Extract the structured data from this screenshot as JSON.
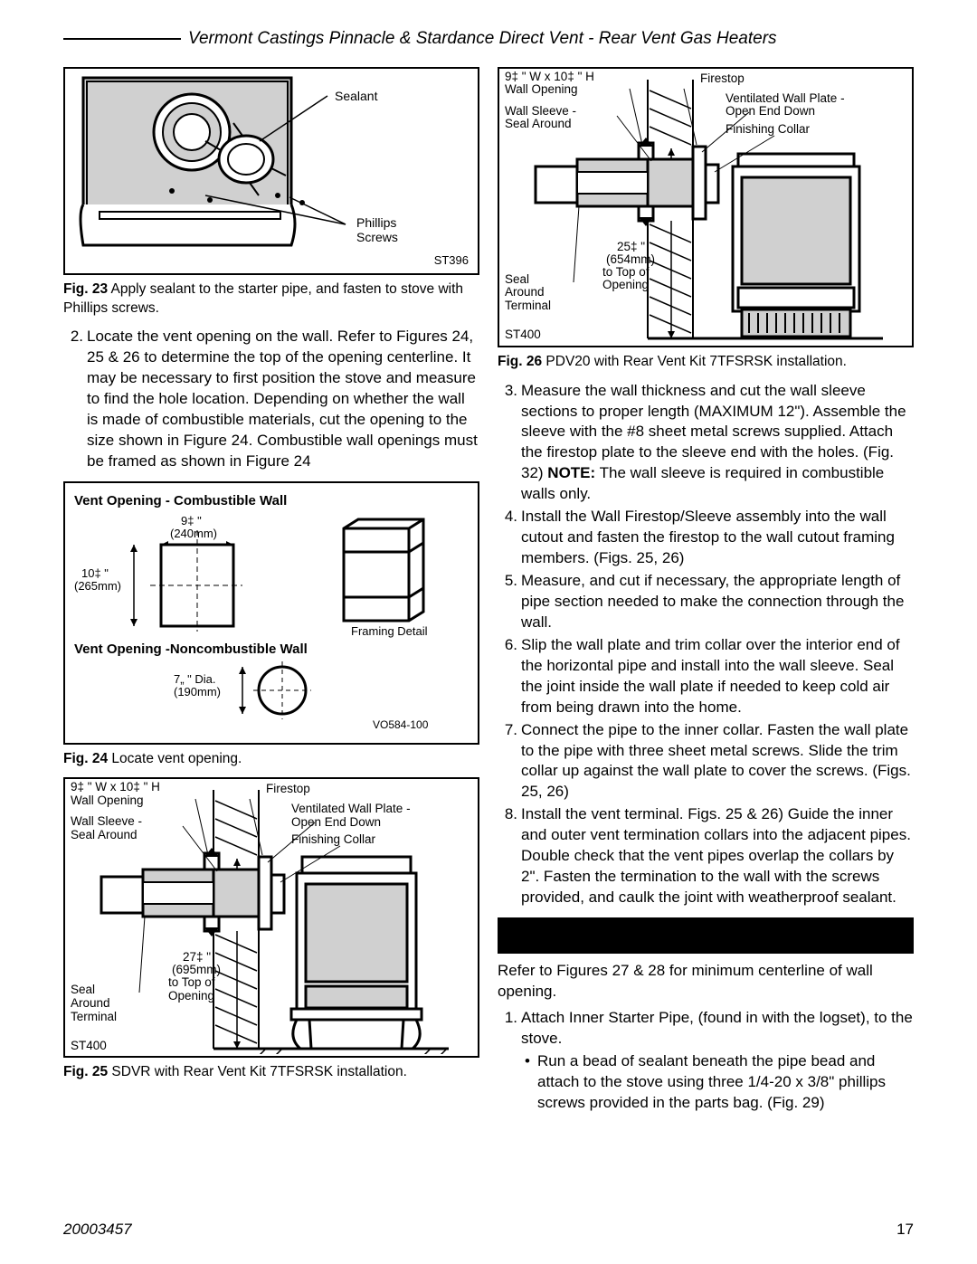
{
  "header": {
    "title": "Vermont Castings Pinnacle & Stardance Direct Vent - Rear Vent Gas Heaters"
  },
  "fig23": {
    "code": "ST396",
    "label_sealant": "Sealant",
    "label_screws": "Phillips\nScrews",
    "caption_bold": "Fig. 23",
    "caption_rest": "  Apply sealant to the starter pipe, and fasten to stove with Phillips screws."
  },
  "leftStep2": {
    "num": "2.",
    "text": "Locate the vent opening on the wall. Refer to Figures 24, 25 & 26 to determine the top of the opening centerline. It may be necessary to first position the stove and measure to find the hole location. Depending on whether the wall is made of combustible materials, cut the opening to the size shown in Figure 24. Combustible wall openings must be framed as shown in Figure 24"
  },
  "fig24": {
    "head1": "Vent Opening - Combustible Wall",
    "w_lbl": "9‡ \"",
    "w_mm": "(240mm)",
    "h_lbl": "10‡ \"",
    "h_mm": "(265mm)",
    "framing": "Framing Detail",
    "head2": "Vent Opening -Noncombustible Wall",
    "dia_lbl": "7„  \" Dia.",
    "dia_mm": "(190mm)",
    "code": "VO584-100",
    "caption_bold": "Fig. 24",
    "caption_rest": "  Locate vent opening."
  },
  "stove_labels": {
    "wo": "9‡ \" W x 10‡ \" H\nWall Opening",
    "ws": "Wall Sleeve -\nSeal Around",
    "seal": "Seal\nAround\nTerminal",
    "fs": "Firestop",
    "vwp": "Ventilated Wall Plate -\nOpen End Down",
    "fc": "Finishing Collar",
    "code": "ST400"
  },
  "fig25": {
    "dim": "27‡ \"",
    "dim_mm": "(695mm)",
    "dim_to": "to Top of\nOpening",
    "caption_bold": "Fig. 25",
    "caption_rest": " SDVR with Rear Vent Kit 7TFSRSK installation."
  },
  "fig26": {
    "dim": "25‡ \"",
    "dim_mm": "(654mm)",
    "dim_to": "to Top of\nOpening",
    "caption_bold": "Fig. 26",
    "caption_rest": "  PDV20 with Rear Vent Kit 7TFSRSK installation."
  },
  "rightSteps": [
    {
      "num": "3.",
      "text": "Measure the wall thickness and cut the wall sleeve sections to proper length (MAXIMUM 12\"). Assemble the sleeve with the #8 sheet metal screws supplied. Attach the firestop plate to the sleeve end with the holes. (Fig. 32) ",
      "note": "NOTE:",
      "after": " The wall sleeve is required in combustible walls only."
    },
    {
      "num": "4.",
      "text": "Install the Wall Firestop/Sleeve assembly into the wall cutout and fasten the firestop to the wall cutout framing members. (Figs. 25, 26)"
    },
    {
      "num": "5.",
      "text": "Measure, and cut if necessary, the appropriate length of pipe section needed to make the connection through the wall."
    },
    {
      "num": "6.",
      "text": "Slip the wall plate and trim collar over the interior end of the horizontal pipe and install into the wall sleeve. Seal the joint inside the wall plate if needed to keep cold air from being drawn into the home."
    },
    {
      "num": "7.",
      "text": "Connect the pipe to the inner collar. Fasten the wall plate to the pipe with three sheet metal screws. Slide the trim collar up against the wall plate to cover the screws. (Figs. 25, 26)"
    },
    {
      "num": "8.",
      "text": "Install the vent terminal. Figs. 25 & 26) Guide the inner and outer vent termination collars into the adjacent pipes. Double check that the vent pipes overlap the collars by 2\". Fasten the termination to the wall with the screws provided, and caulk the joint with weatherproof sealant."
    }
  ],
  "rightPara": "Refer to Figures 27 & 28 for minimum centerline of wall opening.",
  "rightStep1": {
    "num": "1.",
    "text": "Attach Inner Starter Pipe, (found in with the logset), to the stove.",
    "bullet": "Run a bead of sealant beneath the pipe bead and attach to the stove using three 1/4-20 x 3/8\" phillips screws provided in the parts bag. (Fig. 29)"
  },
  "footer": {
    "doc": "20003457",
    "page": "17"
  },
  "colors": {
    "black": "#000000",
    "white": "#ffffff",
    "gray": "#d0d0d0"
  }
}
